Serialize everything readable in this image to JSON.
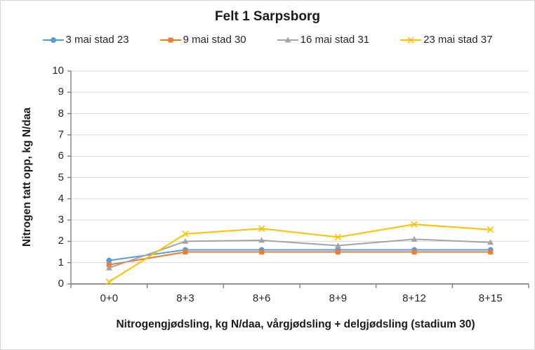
{
  "figure": {
    "title": "Felt 1 Sarpsborg"
  },
  "chart_data": {
    "type": "line",
    "title": "Felt 1 Sarpsborg",
    "categories": [
      "0+0",
      "8+3",
      "8+6",
      "8+9",
      "8+12",
      "8+15"
    ],
    "series": [
      {
        "name": "3 mai stad 23",
        "color": "#5B9BD5",
        "marker": "circle",
        "values": [
          1.1,
          1.6,
          1.6,
          1.6,
          1.6,
          1.6
        ]
      },
      {
        "name": "9 mai stad 30",
        "color": "#ED7D31",
        "marker": "square",
        "values": [
          0.9,
          1.5,
          1.5,
          1.5,
          1.5,
          1.5
        ]
      },
      {
        "name": "16 mai stad 31",
        "color": "#A5A5A5",
        "marker": "triangle",
        "values": [
          0.75,
          2.0,
          2.05,
          1.8,
          2.1,
          1.95
        ]
      },
      {
        "name": "23 mai stad 37",
        "color": "#FFC000",
        "marker": "x",
        "values": [
          0.1,
          2.35,
          2.6,
          2.2,
          2.8,
          2.55
        ]
      }
    ],
    "xlabel": "Nitrogengjødsling, kg N/daa, vårgjødsling + delgjødsling (stadium 30)",
    "ylabel": "Nitrogen tatt opp, kg N/daa",
    "ylim": [
      0,
      10
    ],
    "y_ticks": [
      0,
      1,
      2,
      3,
      4,
      5,
      6,
      7,
      8,
      9,
      10
    ],
    "grid": "horizontal",
    "legend_position": "top"
  },
  "style": {
    "gridline_color": "#D9D9D9",
    "axis_color": "#808080",
    "text_color": "#262626",
    "background": "#FFFFFF",
    "border_color": "#D6D6D6"
  }
}
